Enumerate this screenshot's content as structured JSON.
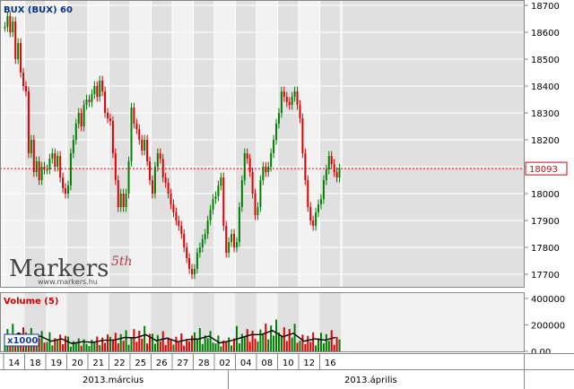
{
  "header": {
    "title": "BUX (BUX) 60"
  },
  "watermark": {
    "brand": "Markers",
    "superscript": "5th",
    "url": "www.markers.hu"
  },
  "volume_panel": {
    "title": "Volume (5)",
    "multiplier": "x1000"
  },
  "last_price": {
    "label": "18093",
    "value": 18093
  },
  "months": [
    {
      "label": "2013.március"
    },
    {
      "label": "2013.április"
    }
  ],
  "colors": {
    "up": "#008000",
    "down": "#e00000",
    "ma": "#000000",
    "lastline": "#e00000",
    "band": "#e0e0e0",
    "title": "#003399"
  },
  "chart_data": [
    {
      "type": "candlestick",
      "title": "BUX (BUX) 60",
      "ylim": [
        17650,
        18720
      ],
      "yticks": [
        17700,
        17800,
        17900,
        18000,
        18100,
        18200,
        18300,
        18400,
        18500,
        18600,
        18700
      ],
      "ytick_labels": [
        "17700",
        "17800",
        "17900",
        "18000",
        "18100",
        "18200",
        "18300",
        "18400",
        "18500",
        "18600",
        "18700"
      ],
      "xtick_labels": [
        "14",
        "18",
        "19",
        "20",
        "21",
        "22",
        "25",
        "26",
        "27",
        "28",
        "02",
        "04",
        "08",
        "10",
        "12",
        "16"
      ],
      "grid": true,
      "series": [
        {
          "name": "14",
          "values": [
            18620,
            18660,
            18600,
            18640,
            18500,
            18560,
            18450,
            18400
          ]
        },
        {
          "name": "18",
          "values": [
            18380,
            18150,
            18200,
            18080,
            18120,
            18050,
            18100,
            18090
          ]
        },
        {
          "name": "19",
          "values": [
            18090,
            18130,
            18150,
            18100,
            18140,
            18060,
            18020,
            18000
          ]
        },
        {
          "name": "20",
          "values": [
            18030,
            18150,
            18200,
            18260,
            18300,
            18250,
            18330,
            18350
          ]
        },
        {
          "name": "21",
          "values": [
            18340,
            18370,
            18400,
            18360,
            18420,
            18380,
            18300,
            18280
          ]
        },
        {
          "name": "22",
          "values": [
            18270,
            18150,
            18050,
            17950,
            18000,
            17950,
            18000,
            18120
          ]
        },
        {
          "name": "25",
          "values": [
            18320,
            18260,
            18240,
            18200,
            18160,
            18200,
            18120,
            18050
          ]
        },
        {
          "name": "26",
          "values": [
            18000,
            18100,
            18150,
            18130,
            18060,
            18040,
            18000,
            17960
          ]
        },
        {
          "name": "27",
          "values": [
            17930,
            17900,
            17880,
            17850,
            17800,
            17760,
            17720,
            17700
          ]
        },
        {
          "name": "28",
          "values": [
            17720,
            17780,
            17800,
            17830,
            17850,
            17900,
            17940,
            17980
          ]
        },
        {
          "name": "02",
          "values": [
            17990,
            18030,
            18060,
            17880,
            17780,
            17820,
            17850,
            17800
          ]
        },
        {
          "name": "04",
          "values": [
            17820,
            17950,
            18050,
            18150,
            18130,
            18080,
            18000,
            17920
          ]
        },
        {
          "name": "08",
          "values": [
            17950,
            18050,
            18100,
            18080,
            18100,
            18150,
            18200,
            18260
          ]
        },
        {
          "name": "10",
          "values": [
            18300,
            18380,
            18360,
            18340,
            18330,
            18360,
            18380,
            18330
          ]
        },
        {
          "name": "12",
          "values": [
            18280,
            18150,
            18050,
            17950,
            17900,
            17880,
            17930,
            17960
          ]
        },
        {
          "name": "16",
          "values": [
            17980,
            18050,
            18090,
            18140,
            18110,
            18080,
            18060,
            18093
          ]
        }
      ]
    },
    {
      "type": "bar",
      "title": "Volume (5)",
      "ylim": [
        0,
        420000
      ],
      "yticks": [
        0,
        200000,
        400000
      ],
      "ytick_labels": [
        "0.00",
        "200000",
        "400000"
      ],
      "series": [
        {
          "name": "Volume (5)",
          "values": [
            130000,
            110000,
            90000,
            70000,
            80000,
            100000,
            120000,
            95000,
            85000,
            110000,
            75000,
            120000,
            150000,
            130000,
            90000,
            100000
          ]
        }
      ]
    }
  ]
}
